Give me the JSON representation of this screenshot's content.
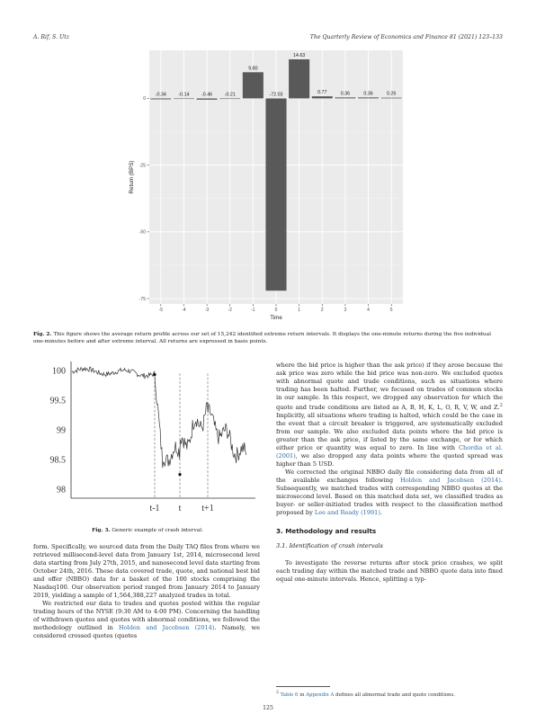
{
  "header": {
    "left": "A. Rif, S. Utz",
    "right": "The Quarterly Review of Economics and Finance 81 (2021) 123–133"
  },
  "fig2": {
    "caption_label": "Fig. 2.",
    "caption_text": "This figure shows the average return profile across our set of 15,242 identified extreme return intervals. It displays the one-minute returns during the five individual one-minutes before and after extreme interval. All returns are expressed in basis points.",
    "chart_data": {
      "type": "bar",
      "categories": [
        "-5",
        "-4",
        "-3",
        "-2",
        "-1",
        "0",
        "1",
        "2",
        "3",
        "4",
        "5"
      ],
      "values": [
        -0.34,
        -0.14,
        -0.46,
        -0.21,
        9.8,
        -72.03,
        14.63,
        0.77,
        0.36,
        0.36,
        0.26
      ],
      "value_labels": [
        "-0.34",
        "-0.14",
        "-0.46",
        "-0.21",
        "9.80",
        "-72.03",
        "14.63",
        "0.77",
        "0.36",
        "0.36",
        "0.26"
      ],
      "xlabel": "Time",
      "ylabel": "Return (BPS)",
      "yticks": [
        0,
        -25,
        -50,
        -75
      ],
      "ytick_labels": [
        "0",
        "-25",
        "-50",
        "-75"
      ],
      "ylim": [
        -77,
        18
      ],
      "grid": true,
      "background": "#ebebeb",
      "bar_color": "#595959"
    }
  },
  "fig3": {
    "caption_label": "Fig. 3.",
    "caption_text": "Generic example of crash interval.",
    "chart_data": {
      "type": "line",
      "yticks": [
        100,
        99.5,
        99,
        98.5,
        98
      ],
      "ytick_labels": [
        "100",
        "99.5",
        "99",
        "98.5",
        "98"
      ],
      "ylim": [
        97.85,
        100.15
      ],
      "xmarkers": [
        "t-1",
        "t",
        "t+1"
      ],
      "line_color": "#333333"
    }
  },
  "left_body": {
    "p1": "form. Specifically, we sourced data from the Daily TAQ files from where we retrieved millisecond-level data from January 1st, 2014, microsecond level data starting from July 27th, 2015, and nanosecond level data starting from October 24th, 2016. These data covered trade, quote, and national best bid and offer (NBBO) data for a basket of the 100 stocks comprising the Nasdaq100. Our observation period ranged from January 2014 to January 2019, yielding a sample of 1,564,388,227 analyzed trades in total.",
    "p2_a": "We restricted our data to trades and quotes posted within the regular trading hours of the NYSE (9:30 AM to 4:00 PM). Concerning the handling of withdrawn quotes and quotes with abnormal conditions, we followed the methodology outlined in ",
    "p2_link": "Holden and Jacobsen (2014)",
    "p2_b": ". Namely, we considered crossed quotes (quotes"
  },
  "right_body": {
    "p1_a": "where the bid price is higher than the ask price) if they arose because the ask price was zero while the bid price was non-zero. We excluded quotes with abnormal quote and trade conditions, such as situations where trading has been halted. Further, we focused on trades of common stocks in our sample. In this respect, we dropped any observation for which the quote and trade conditions are listed as A, B, H, K, L, O, R, V, W, and Z.",
    "p1_sup": "2",
    "p1_b": " Implicitly, all situations where trading is halted, which could be the case in the event that a circuit breaker is triggered, are systematically excluded from our sample. We also excluded data points where the bid price is greater than the ask price, if listed by the same exchange, or for which either price or quantity was equal to zero. In line with ",
    "p1_link": "Chordia et al. (2001)",
    "p1_c": ", we also dropped any data points where the quoted spread was higher than 5 USD.",
    "p2_a": "We corrected the original NBBO daily file considering data from all of the available exchanges following ",
    "p2_link1": "Holden and Jacobsen (2014)",
    "p2_b": ". Subsequently, we matched trades with corresponding NBBO quotes at the microsecond level. Based on this matched data set, we classified trades as buyer- or seller-initiated trades with respect to the classification method proposed by ",
    "p2_link2": "Lee and Ready (1991)",
    "p2_c": ".",
    "sec_heading": "3.  Methodology and results",
    "subsec_heading": "3.1.  Identification of crash intervals",
    "p3": "To investigate the reverse returns after stock price crashes, we split each trading day within the matched trade and NBBO quote data into fixed equal one-minute intervals. Hence, splitting a typ-"
  },
  "footnote": {
    "mark": "2",
    "link1": "Table 6",
    "mid": " in ",
    "link2": "Appendix A",
    "text": " defines all abnormal trade and quote conditions."
  },
  "page_number": "125"
}
